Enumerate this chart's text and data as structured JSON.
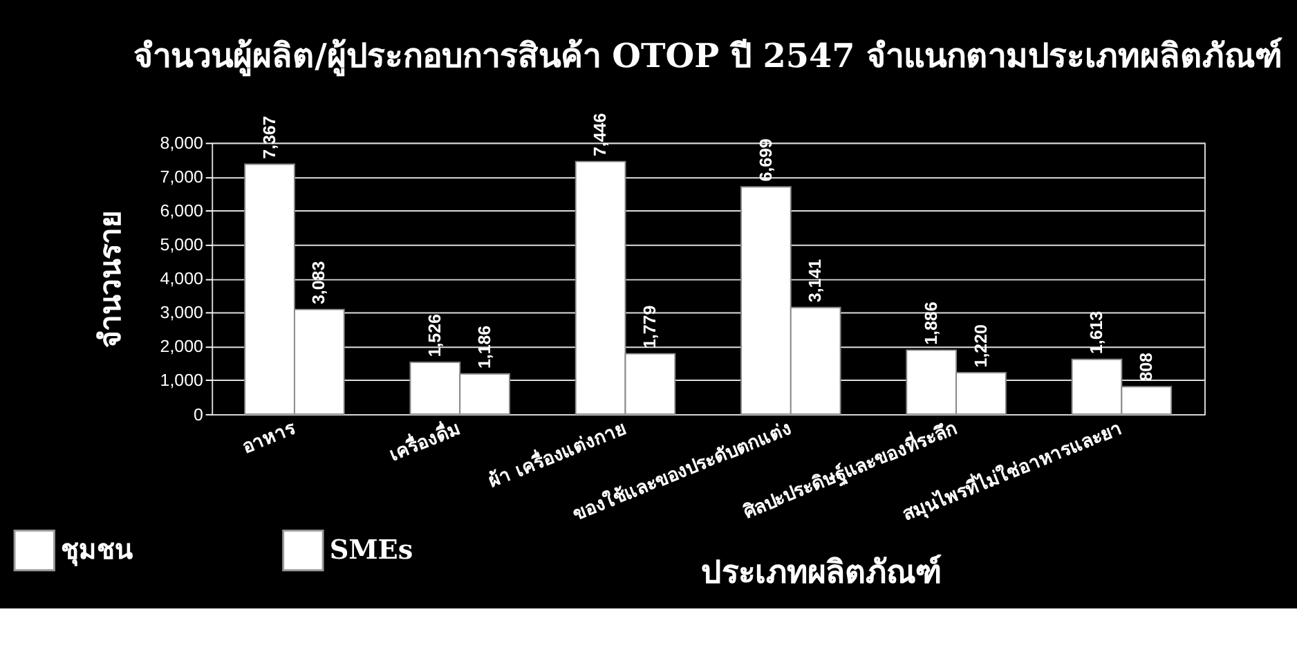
{
  "chart_data": {
    "type": "bar",
    "title": "จำนวนผู้ผลิต/ผู้ประกอบการสินค้า OTOP ปี 2547 จำแนกตามประเภทผลิตภัณฑ์",
    "xlabel": "ประเภทผลิตภัณฑ์",
    "ylabel": "จำนวนราย",
    "categories": [
      "อาหาร",
      "เครื่องดื่ม",
      "ผ้า เครื่องแต่งกาย",
      "ของใช้และของประดับตกแต่ง",
      "ศิลปะประดิษฐ์และของที่ระลึก",
      "สมุนไพรที่ไม่ใช่อาหารและยา"
    ],
    "series": [
      {
        "name": "ชุมชน",
        "color": "#ffffff",
        "values": [
          7367,
          1526,
          7446,
          6699,
          1886,
          1613
        ]
      },
      {
        "name": "SMEs",
        "color": "#ffffff",
        "values": [
          3083,
          1186,
          1779,
          3141,
          1220,
          808
        ]
      }
    ],
    "ylim": [
      0,
      8000
    ],
    "yticks": [
      {
        "value": 0,
        "label": "0"
      },
      {
        "value": 1000,
        "label": "1,000"
      },
      {
        "value": 2000,
        "label": "2,000"
      },
      {
        "value": 3000,
        "label": "3,000"
      },
      {
        "value": 4000,
        "label": "4,000"
      },
      {
        "value": 5000,
        "label": "5,000"
      },
      {
        "value": 6000,
        "label": "6,000"
      },
      {
        "value": 7000,
        "label": "7,000"
      },
      {
        "value": 8000,
        "label": "8,000"
      }
    ],
    "grid": "y",
    "legend": "bottom left",
    "value_labels": [
      [
        "7,367",
        "1,526",
        "7,446",
        "6,699",
        "1,886",
        "1,613"
      ],
      [
        "3,083",
        "1,186",
        "1,779",
        "3,141",
        "1,220",
        "808"
      ]
    ]
  }
}
